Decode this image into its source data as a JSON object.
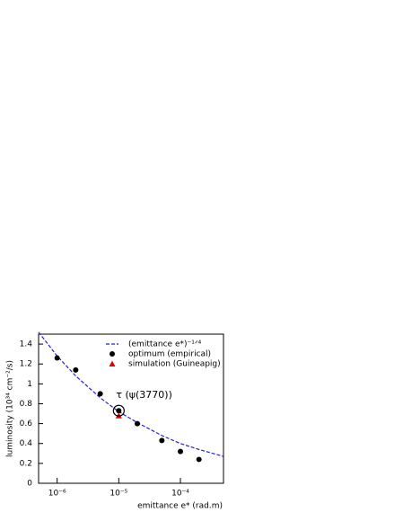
{
  "chart_data": {
    "type": "scatter",
    "x_label": "emittance e* (rad.m)",
    "y_label": "luminosity (10³⁴ cm⁻²/s)",
    "annotation": "τ (ψ(3770))",
    "xlog": true,
    "xlim": [
      5e-07,
      0.0005
    ],
    "ylim": [
      0,
      1.5
    ],
    "xticks": [
      {
        "value": 1e-06,
        "label": "10⁻⁶"
      },
      {
        "value": 1e-05,
        "label": "10⁻⁵"
      },
      {
        "value": 0.0001,
        "label": "10⁻⁴"
      }
    ],
    "yticks": [
      0,
      0.2,
      0.4,
      0.6,
      0.8,
      1,
      1.2,
      1.4
    ],
    "series": [
      {
        "name": "(emittance e*)⁻¹ᐟ⁴",
        "kind": "dashed-line",
        "color": "#2222cc",
        "x": [
          5e-07,
          1e-06,
          2e-06,
          5e-06,
          1e-05,
          2e-05,
          5e-05,
          0.0001,
          0.0002,
          0.0005
        ],
        "values": [
          1.52,
          1.28,
          1.08,
          0.86,
          0.72,
          0.61,
          0.48,
          0.4,
          0.34,
          0.27
        ]
      },
      {
        "name": "optimum (empirical)",
        "kind": "circle",
        "color": "#000000",
        "x": [
          1e-06,
          2e-06,
          5e-06,
          1e-05,
          2e-05,
          5e-05,
          0.0001,
          0.0002
        ],
        "values": [
          1.26,
          1.14,
          0.9,
          0.73,
          0.6,
          0.43,
          0.32,
          0.24
        ]
      },
      {
        "name": "simulation (Guineapig)",
        "kind": "triangle",
        "color": "#dd0000",
        "x": [
          1e-05
        ],
        "values": [
          0.68
        ]
      }
    ]
  }
}
